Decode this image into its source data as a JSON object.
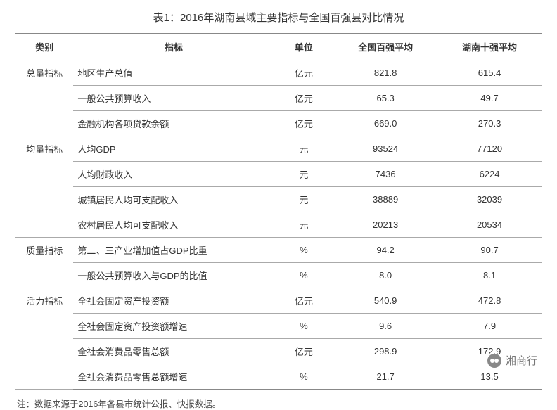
{
  "title": "表1：2016年湖南县域主要指标与全国百强县对比情况",
  "columns": {
    "category": "类别",
    "indicator": "指标",
    "unit": "单位",
    "national": "全国百强平均",
    "hunan": "湖南十强平均"
  },
  "groups": [
    {
      "category": "总量指标",
      "rows": [
        {
          "indicator": "地区生产总值",
          "unit": "亿元",
          "national": "821.8",
          "hunan": "615.4"
        },
        {
          "indicator": "一般公共预算收入",
          "unit": "亿元",
          "national": "65.3",
          "hunan": "49.7"
        },
        {
          "indicator": "金融机构各项贷款余额",
          "unit": "亿元",
          "national": "669.0",
          "hunan": "270.3"
        }
      ]
    },
    {
      "category": "均量指标",
      "rows": [
        {
          "indicator": "人均GDP",
          "unit": "元",
          "national": "93524",
          "hunan": "77120"
        },
        {
          "indicator": "人均财政收入",
          "unit": "元",
          "national": "7436",
          "hunan": "6224"
        },
        {
          "indicator": "城镇居民人均可支配收入",
          "unit": "元",
          "national": "38889",
          "hunan": "32039"
        },
        {
          "indicator": "农村居民人均可支配收入",
          "unit": "元",
          "national": "20213",
          "hunan": "20534"
        }
      ]
    },
    {
      "category": "质量指标",
      "rows": [
        {
          "indicator": "第二、三产业增加值占GDP比重",
          "unit": "%",
          "national": "94.2",
          "hunan": "90.7"
        },
        {
          "indicator": "一般公共预算收入与GDP的比值",
          "unit": "%",
          "national": "8.0",
          "hunan": "8.1"
        }
      ]
    },
    {
      "category": "活力指标",
      "rows": [
        {
          "indicator": "全社会固定资产投资额",
          "unit": "亿元",
          "national": "540.9",
          "hunan": "472.8"
        },
        {
          "indicator": "全社会固定资产投资额增速",
          "unit": "%",
          "national": "9.6",
          "hunan": "7.9"
        },
        {
          "indicator": "全社会消费品零售总额",
          "unit": "亿元",
          "national": "298.9",
          "hunan": "172.9"
        },
        {
          "indicator": "全社会消费品零售总额增速",
          "unit": "%",
          "national": "21.7",
          "hunan": "13.5"
        }
      ]
    }
  ],
  "note": "注：数据来源于2016年各县市统计公报、快报数据。",
  "watermark": "湘商行"
}
